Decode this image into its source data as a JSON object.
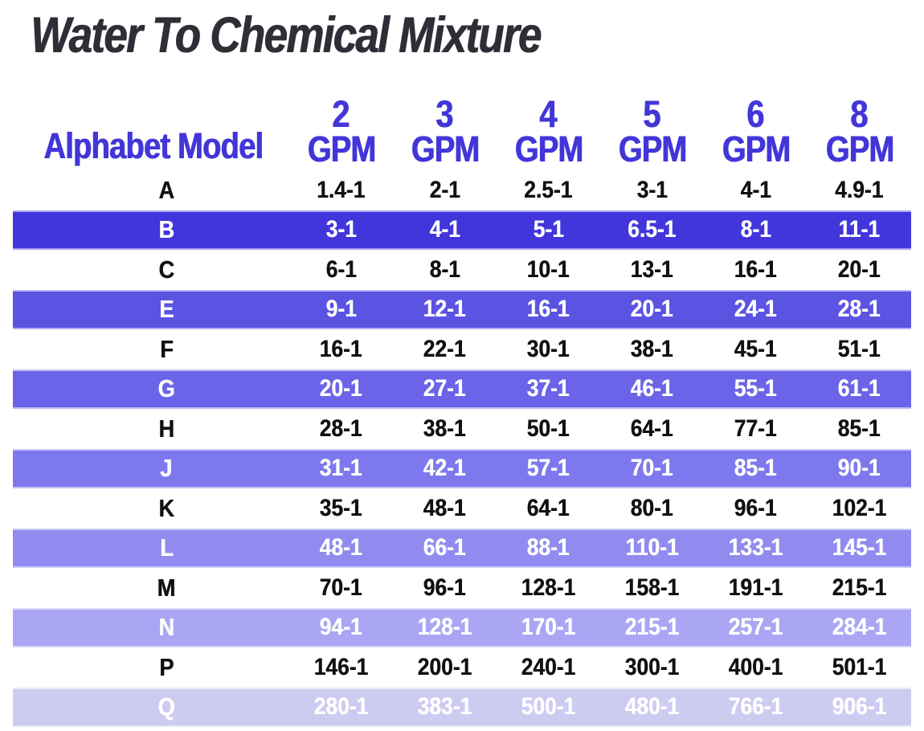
{
  "title": "Water To Chemical Mixture",
  "colors": {
    "title_text": "#2e2e36",
    "header_text": "#4236d9",
    "row_text_dark": "#111111",
    "row_text_light": "#ffffff",
    "page_background": "#ffffff",
    "stripe_shades": [
      "#4136dc",
      "#5b53e2",
      "#6b64e8",
      "#7e78ee",
      "#918bf0",
      "#aaa6f4",
      "#cecbf1"
    ]
  },
  "header": {
    "model_label": "Alphabet Model",
    "gpm_columns": [
      {
        "value": "2",
        "unit": "GPM"
      },
      {
        "value": "3",
        "unit": "GPM"
      },
      {
        "value": "4",
        "unit": "GPM"
      },
      {
        "value": "5",
        "unit": "GPM"
      },
      {
        "value": "6",
        "unit": "GPM"
      },
      {
        "value": "8",
        "unit": "GPM"
      }
    ]
  },
  "chart_data": {
    "type": "table",
    "title": "Water To Chemical Mixture",
    "columns": [
      "Alphabet Model",
      "2 GPM",
      "3 GPM",
      "4 GPM",
      "5 GPM",
      "6 GPM",
      "8 GPM"
    ],
    "rows": [
      {
        "model": "A",
        "values": [
          "1.4-1",
          "2-1",
          "2.5-1",
          "3-1",
          "4-1",
          "4.9-1"
        ],
        "striped": false,
        "background": "#ffffff",
        "text_color": "#111111"
      },
      {
        "model": "B",
        "values": [
          "3-1",
          "4-1",
          "5-1",
          "6.5-1",
          "8-1",
          "11-1"
        ],
        "striped": true,
        "background": "#4136dc",
        "text_color": "#ffffff"
      },
      {
        "model": "C",
        "values": [
          "6-1",
          "8-1",
          "10-1",
          "13-1",
          "16-1",
          "20-1"
        ],
        "striped": false,
        "background": "#ffffff",
        "text_color": "#111111"
      },
      {
        "model": "E",
        "values": [
          "9-1",
          "12-1",
          "16-1",
          "20-1",
          "24-1",
          "28-1"
        ],
        "striped": true,
        "background": "#5b53e2",
        "text_color": "#ffffff"
      },
      {
        "model": "F",
        "values": [
          "16-1",
          "22-1",
          "30-1",
          "38-1",
          "45-1",
          "51-1"
        ],
        "striped": false,
        "background": "#ffffff",
        "text_color": "#111111"
      },
      {
        "model": "G",
        "values": [
          "20-1",
          "27-1",
          "37-1",
          "46-1",
          "55-1",
          "61-1"
        ],
        "striped": true,
        "background": "#6b64e8",
        "text_color": "#ffffff"
      },
      {
        "model": "H",
        "values": [
          "28-1",
          "38-1",
          "50-1",
          "64-1",
          "77-1",
          "85-1"
        ],
        "striped": false,
        "background": "#ffffff",
        "text_color": "#111111"
      },
      {
        "model": "J",
        "values": [
          "31-1",
          "42-1",
          "57-1",
          "70-1",
          "85-1",
          "90-1"
        ],
        "striped": true,
        "background": "#7e78ee",
        "text_color": "#ffffff"
      },
      {
        "model": "K",
        "values": [
          "35-1",
          "48-1",
          "64-1",
          "80-1",
          "96-1",
          "102-1"
        ],
        "striped": false,
        "background": "#ffffff",
        "text_color": "#111111"
      },
      {
        "model": "L",
        "values": [
          "48-1",
          "66-1",
          "88-1",
          "110-1",
          "133-1",
          "145-1"
        ],
        "striped": true,
        "background": "#918bf0",
        "text_color": "#ffffff"
      },
      {
        "model": "M",
        "values": [
          "70-1",
          "96-1",
          "128-1",
          "158-1",
          "191-1",
          "215-1"
        ],
        "striped": false,
        "background": "#ffffff",
        "text_color": "#111111"
      },
      {
        "model": "N",
        "values": [
          "94-1",
          "128-1",
          "170-1",
          "215-1",
          "257-1",
          "284-1"
        ],
        "striped": true,
        "background": "#aaa6f4",
        "text_color": "#ffffff"
      },
      {
        "model": "P",
        "values": [
          "146-1",
          "200-1",
          "240-1",
          "300-1",
          "400-1",
          "501-1"
        ],
        "striped": false,
        "background": "#ffffff",
        "text_color": "#111111"
      },
      {
        "model": "Q",
        "values": [
          "280-1",
          "383-1",
          "500-1",
          "480-1",
          "766-1",
          "906-1"
        ],
        "striped": true,
        "background": "#cecbf1",
        "text_color": "#ffffff"
      }
    ]
  }
}
